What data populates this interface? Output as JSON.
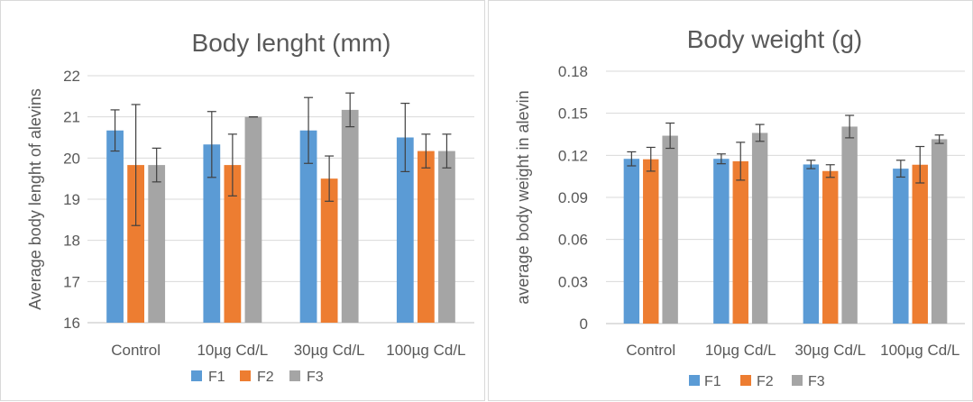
{
  "charts": [
    {
      "id": "length",
      "chart_data": {
        "type": "bar",
        "title": "Body lenght (mm)",
        "xlabel": "",
        "ylabel": "Average body lenght of alevins",
        "categories": [
          "Control",
          "10µg Cd/L",
          "30µg Cd/L",
          "100µg Cd/L"
        ],
        "ylim": [
          16,
          22
        ],
        "yticks": [
          "16",
          "17",
          "18",
          "19",
          "20",
          "21",
          "22"
        ],
        "grid": true,
        "legend": "bottom",
        "series": [
          {
            "name": "F1",
            "color": "#5b9bd5",
            "values": [
              20.67,
              20.33,
              20.67,
              20.5
            ],
            "errors": [
              0.5,
              0.8,
              0.8,
              0.83
            ]
          },
          {
            "name": "F2",
            "color": "#ed7d31",
            "values": [
              19.83,
              19.83,
              19.5,
              20.17
            ],
            "errors": [
              1.47,
              0.75,
              0.55,
              0.41
            ]
          },
          {
            "name": "F3",
            "color": "#a5a5a5",
            "values": [
              19.83,
              21.0,
              21.17,
              20.17
            ],
            "errors": [
              0.41,
              0.0,
              0.41,
              0.41
            ]
          }
        ]
      }
    },
    {
      "id": "weight",
      "chart_data": {
        "type": "bar",
        "title": "Body weight (g)",
        "xlabel": "",
        "ylabel": "average body weight in alevin",
        "categories": [
          "Control",
          "10µg Cd/L",
          "30µg Cd/L",
          "100µg Cd/L"
        ],
        "ylim": [
          0,
          0.18
        ],
        "yticks": [
          "0",
          "0.03",
          "0.06",
          "0.09",
          "0.12",
          "0.15",
          "0.18"
        ],
        "grid": true,
        "legend": "bottom",
        "series": [
          {
            "name": "F1",
            "color": "#5b9bd5",
            "values": [
              0.1175,
              0.1175,
              0.1135,
              0.1105
            ],
            "errors": [
              0.005,
              0.0035,
              0.003,
              0.006
            ]
          },
          {
            "name": "F2",
            "color": "#ed7d31",
            "values": [
              0.1172,
              0.1158,
              0.1088,
              0.1133
            ],
            "errors": [
              0.0085,
              0.0135,
              0.0045,
              0.013
            ]
          },
          {
            "name": "F3",
            "color": "#a5a5a5",
            "values": [
              0.134,
              0.136,
              0.1405,
              0.1315
            ],
            "errors": [
              0.009,
              0.006,
              0.008,
              0.003
            ]
          }
        ]
      }
    }
  ],
  "colors": {
    "grid": "#d9d9d9",
    "text": "#595959",
    "errorbar": "#404040"
  }
}
